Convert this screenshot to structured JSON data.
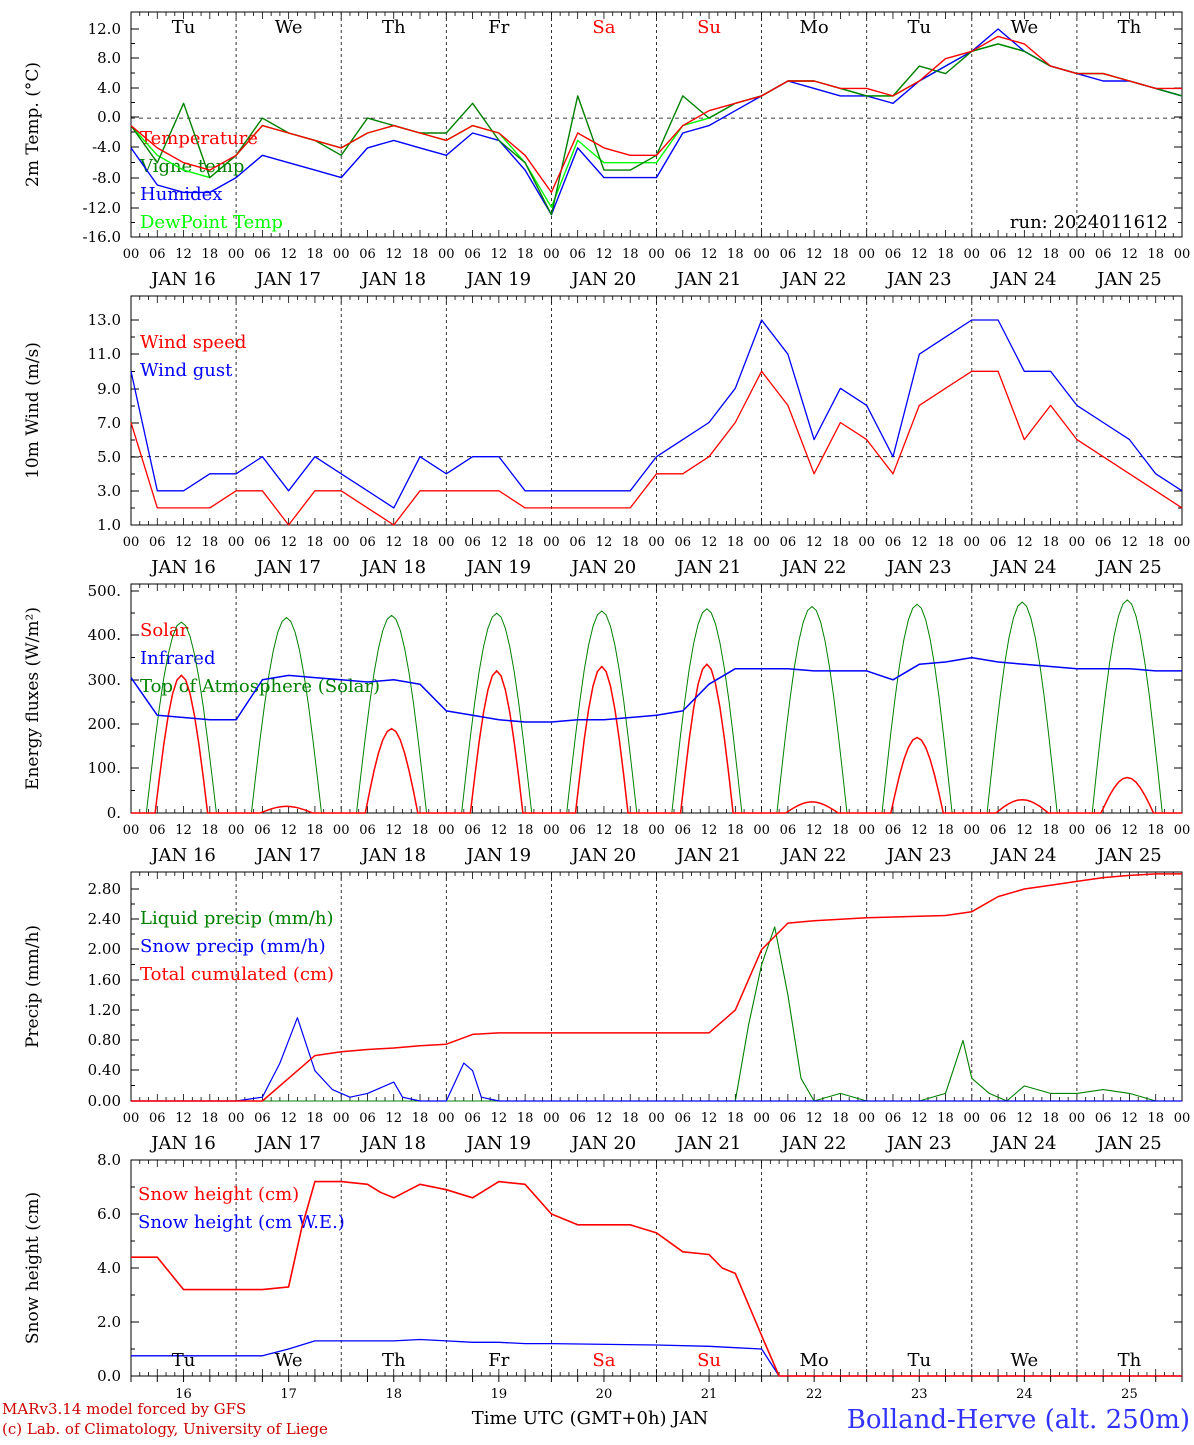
{
  "title": "Bolland-Herve (alt. 250m)",
  "xlabel": "Time UTC (GMT+0h) JAN",
  "footer": [
    "MARv3.14 model forced by GFS",
    "(c) Lab. of Climatology, University of Liege"
  ],
  "run_label": "run: 2024011612",
  "colors": {
    "red": "#ff0000",
    "blue": "#0000ff",
    "green": "#008000",
    "lightgreen": "#00ff00",
    "weekend": "#ff0000"
  },
  "hour_ticks": [
    "00",
    "06",
    "12",
    "18"
  ],
  "date_labels": [
    "JAN 16",
    "JAN 17",
    "JAN 18",
    "JAN 19",
    "JAN 20",
    "JAN 21",
    "JAN 22",
    "JAN 23",
    "JAN 24",
    "JAN 25"
  ],
  "bottom_dates": [
    "16",
    "17",
    "18",
    "19",
    "20",
    "21",
    "22",
    "23",
    "24",
    "25"
  ],
  "weekdays_top": [
    "Tu",
    "We",
    "Th",
    "Fr",
    "Sa",
    "Su",
    "Mo",
    "Tu",
    "We",
    "Th"
  ],
  "weekdays_bottom": [
    "Tu",
    "We",
    "Th",
    "Fr",
    "Sa",
    "Su",
    "Mo",
    "Tu",
    "We",
    "Th"
  ],
  "weekend_days": [
    "Sa",
    "Su"
  ],
  "chart_data": [
    {
      "type": "line",
      "ylabel": "2m Temp. (°C)",
      "ylim": [
        -16,
        14
      ],
      "yticks": [
        "-16.0",
        "-12.0",
        "-8.0",
        "-4.0",
        "0.0",
        "4.0",
        "8.0",
        "12.0"
      ],
      "ref_line": 0,
      "x_unit": "hours since JAN 16 00 UTC",
      "series": [
        {
          "name": "Temperature",
          "color": "red",
          "x": [
            0,
            6,
            12,
            18,
            24,
            30,
            36,
            42,
            48,
            54,
            60,
            66,
            72,
            78,
            84,
            90,
            96,
            102,
            108,
            114,
            120,
            126,
            132,
            138,
            144,
            150,
            156,
            162,
            168,
            174,
            180,
            186,
            192,
            198,
            204,
            210,
            216,
            222,
            228,
            234,
            240
          ],
          "values": [
            -1,
            -4,
            -6,
            -7,
            -5,
            -1,
            -2,
            -3,
            -4,
            -2,
            -1,
            -2,
            -3,
            -1,
            -2,
            -5,
            -10,
            -2,
            -4,
            -5,
            -5,
            -1,
            1,
            2,
            3,
            5,
            5,
            4,
            4,
            3,
            5,
            8,
            9,
            11,
            10,
            7,
            6,
            6,
            5,
            4,
            4
          ]
        },
        {
          "name": "Vigne temp",
          "color": "green",
          "x": [
            0,
            6,
            12,
            18,
            24,
            30,
            36,
            42,
            48,
            54,
            60,
            66,
            72,
            78,
            84,
            90,
            96,
            102,
            108,
            114,
            120,
            126,
            132,
            138,
            144,
            150,
            156,
            162,
            168,
            174,
            180,
            186,
            192,
            198,
            204,
            210,
            216,
            222,
            228,
            234,
            240
          ],
          "values": [
            -1,
            -6,
            2,
            -8,
            -5,
            0,
            -2,
            -3,
            -5,
            0,
            -1,
            -2,
            -2,
            2,
            -3,
            -6,
            -13,
            3,
            -7,
            -7,
            -5,
            3,
            0,
            2,
            3,
            5,
            5,
            4,
            3,
            3,
            7,
            6,
            9,
            10,
            9,
            7,
            6,
            6,
            5,
            4,
            3
          ]
        },
        {
          "name": "Humidex",
          "color": "blue",
          "x": [
            0,
            6,
            12,
            18,
            24,
            30,
            36,
            42,
            48,
            54,
            60,
            66,
            72,
            78,
            84,
            90,
            96,
            102,
            108,
            114,
            120,
            126,
            132,
            138,
            144,
            150,
            156,
            162,
            168,
            174,
            180,
            186,
            192,
            198,
            204,
            210,
            216,
            222,
            228,
            234,
            240
          ],
          "values": [
            -4,
            -9,
            -10,
            -10,
            -8,
            -5,
            -6,
            -7,
            -8,
            -4,
            -3,
            -4,
            -5,
            -2,
            -3,
            -7,
            -13,
            -4,
            -8,
            -8,
            -8,
            -2,
            -1,
            1,
            3,
            5,
            4,
            3,
            3,
            2,
            5,
            7,
            9,
            12,
            9,
            7,
            6,
            5,
            5,
            4,
            3
          ]
        },
        {
          "name": "DewPoint Temp",
          "color": "lightgreen",
          "x": [
            0,
            6,
            12,
            18,
            24,
            30,
            36,
            42,
            48,
            54,
            60,
            66,
            72,
            78,
            84,
            90,
            96,
            102,
            108,
            114,
            120,
            126,
            132,
            138,
            144,
            150,
            156,
            162,
            168,
            174,
            180,
            186,
            192,
            198,
            204,
            210,
            216,
            222,
            228,
            234,
            240
          ],
          "values": [
            -1,
            -5,
            -7,
            -8,
            -5,
            -1,
            -2,
            -3,
            -4,
            -2,
            -1,
            -2,
            -3,
            -1,
            -2,
            -6,
            -12,
            -3,
            -6,
            -6,
            -6,
            -1,
            0,
            2,
            3,
            5,
            5,
            4,
            3,
            3,
            5,
            7,
            9,
            10,
            9,
            7,
            6,
            6,
            5,
            4,
            3
          ]
        }
      ]
    },
    {
      "type": "line",
      "ylabel": "10m Wind (m/s)",
      "ylim": [
        1,
        14
      ],
      "yticks": [
        "1.0",
        "3.0",
        "5.0",
        "7.0",
        "9.0",
        "11.0",
        "13.0"
      ],
      "ref_line": 5,
      "series": [
        {
          "name": "Wind speed",
          "color": "red",
          "x": [
            0,
            6,
            12,
            18,
            24,
            30,
            36,
            42,
            48,
            54,
            60,
            66,
            72,
            78,
            84,
            90,
            96,
            102,
            108,
            114,
            120,
            126,
            132,
            138,
            144,
            150,
            156,
            162,
            168,
            174,
            180,
            186,
            192,
            198,
            204,
            210,
            216,
            222,
            228,
            234,
            240
          ],
          "values": [
            7,
            2,
            2,
            2,
            3,
            3,
            1,
            3,
            3,
            2,
            1,
            3,
            3,
            3,
            3,
            2,
            2,
            2,
            2,
            2,
            4,
            4,
            5,
            7,
            10,
            8,
            4,
            7,
            6,
            4,
            8,
            9,
            10,
            10,
            6,
            8,
            6,
            5,
            4,
            3,
            2
          ]
        },
        {
          "name": "Wind gust",
          "color": "blue",
          "x": [
            0,
            6,
            12,
            18,
            24,
            30,
            36,
            42,
            48,
            54,
            60,
            66,
            72,
            78,
            84,
            90,
            96,
            102,
            108,
            114,
            120,
            126,
            132,
            138,
            144,
            150,
            156,
            162,
            168,
            174,
            180,
            186,
            192,
            198,
            204,
            210,
            216,
            222,
            228,
            234,
            240
          ],
          "values": [
            10,
            3,
            3,
            4,
            4,
            5,
            3,
            5,
            4,
            3,
            2,
            5,
            4,
            5,
            5,
            3,
            3,
            3,
            3,
            3,
            5,
            6,
            7,
            9,
            13,
            11,
            6,
            9,
            8,
            5,
            11,
            12,
            13,
            13,
            10,
            10,
            8,
            7,
            6,
            4,
            3
          ]
        }
      ]
    },
    {
      "type": "line",
      "ylabel": "Energy fluxes (W/m²)",
      "ylim": [
        0,
        500
      ],
      "yticks": [
        "0.",
        "100.",
        "200.",
        "300.",
        "400.",
        "500."
      ],
      "solar_peaks": [
        310,
        15,
        190,
        320,
        330,
        335,
        25,
        170,
        30,
        80
      ],
      "toa_peaks": [
        430,
        440,
        445,
        450,
        455,
        460,
        465,
        470,
        475,
        480
      ],
      "series": [
        {
          "name": "Solar",
          "color": "red"
        },
        {
          "name": "Infrared",
          "color": "blue",
          "x": [
            0,
            6,
            12,
            18,
            24,
            30,
            36,
            42,
            48,
            54,
            60,
            66,
            72,
            78,
            84,
            90,
            96,
            102,
            108,
            114,
            120,
            126,
            132,
            138,
            144,
            150,
            156,
            162,
            168,
            174,
            180,
            186,
            192,
            198,
            204,
            210,
            216,
            222,
            228,
            234,
            240
          ],
          "values": [
            305,
            220,
            215,
            210,
            210,
            300,
            310,
            305,
            300,
            295,
            300,
            290,
            230,
            220,
            210,
            205,
            205,
            210,
            210,
            215,
            220,
            230,
            290,
            325,
            325,
            325,
            320,
            320,
            320,
            300,
            335,
            340,
            350,
            340,
            335,
            330,
            325,
            325,
            325,
            320,
            320
          ]
        },
        {
          "name": "Top of Atmosphere (Solar)",
          "color": "green"
        }
      ]
    },
    {
      "type": "line",
      "ylabel": "Precip (mm/h)",
      "ylim": [
        0,
        3.0
      ],
      "yticks": [
        "0.00",
        "0.40",
        "0.80",
        "1.20",
        "1.60",
        "2.00",
        "2.40",
        "2.80"
      ],
      "series": [
        {
          "name": "Liquid precip (mm/h)",
          "color": "green",
          "x": [
            0,
            24,
            30,
            36,
            138,
            141,
            144,
            147,
            150,
            153,
            156,
            162,
            168,
            174,
            180,
            186,
            190,
            192,
            196,
            200,
            204,
            210,
            216,
            222,
            228,
            234,
            240
          ],
          "values": [
            0,
            0,
            0,
            0,
            0,
            1.0,
            1.8,
            2.3,
            1.4,
            0.3,
            0,
            0.1,
            0,
            0,
            0,
            0.1,
            0.8,
            0.3,
            0.1,
            0,
            0.2,
            0.1,
            0.1,
            0.15,
            0.1,
            0,
            0
          ]
        },
        {
          "name": "Snow precip (mm/h)",
          "color": "blue",
          "x": [
            0,
            24,
            30,
            34,
            38,
            42,
            46,
            50,
            54,
            60,
            62,
            66,
            72,
            76,
            78,
            80,
            84,
            90,
            240
          ],
          "values": [
            0,
            0,
            0.05,
            0.5,
            1.1,
            0.4,
            0.15,
            0.05,
            0.1,
            0.25,
            0.05,
            0,
            0,
            0.5,
            0.4,
            0.05,
            0,
            0,
            0
          ]
        },
        {
          "name": "Total cumulated (cm)",
          "color": "red",
          "x": [
            0,
            30,
            36,
            42,
            48,
            54,
            60,
            66,
            72,
            78,
            84,
            90,
            96,
            102,
            108,
            114,
            120,
            126,
            132,
            138,
            144,
            150,
            156,
            162,
            168,
            174,
            180,
            186,
            192,
            198,
            204,
            210,
            216,
            222,
            228,
            234,
            240
          ],
          "values": [
            0,
            0,
            0.3,
            0.6,
            0.65,
            0.68,
            0.7,
            0.73,
            0.75,
            0.88,
            0.9,
            0.9,
            0.9,
            0.9,
            0.9,
            0.9,
            0.9,
            0.9,
            0.9,
            1.2,
            2.0,
            2.35,
            2.38,
            2.4,
            2.42,
            2.43,
            2.44,
            2.45,
            2.5,
            2.7,
            2.8,
            2.85,
            2.9,
            2.95,
            2.98,
            3.0,
            3.0
          ]
        }
      ]
    },
    {
      "type": "line",
      "ylabel": "Snow height (cm)",
      "ylim": [
        0,
        8
      ],
      "yticks": [
        "0.0",
        "2.0",
        "4.0",
        "6.0",
        "8.0"
      ],
      "series": [
        {
          "name": "Snow height (cm)",
          "color": "red",
          "x": [
            0,
            6,
            9,
            12,
            18,
            24,
            30,
            36,
            39,
            42,
            48,
            54,
            57,
            60,
            66,
            72,
            78,
            84,
            90,
            96,
            102,
            108,
            114,
            120,
            126,
            132,
            135,
            138,
            144,
            148,
            240
          ],
          "values": [
            4.4,
            4.4,
            3.8,
            3.2,
            3.2,
            3.2,
            3.2,
            3.3,
            5.5,
            7.2,
            7.2,
            7.1,
            6.8,
            6.6,
            7.1,
            6.9,
            6.6,
            7.2,
            7.1,
            6.0,
            5.6,
            5.6,
            5.6,
            5.3,
            4.6,
            4.5,
            4.0,
            3.8,
            1.5,
            0,
            0
          ]
        },
        {
          "name": "Snow height (cm W.E.)",
          "color": "blue",
          "x": [
            0,
            24,
            30,
            36,
            42,
            48,
            60,
            66,
            72,
            78,
            84,
            90,
            96,
            120,
            132,
            138,
            144,
            148,
            240
          ],
          "values": [
            0.75,
            0.75,
            0.75,
            1.0,
            1.3,
            1.3,
            1.3,
            1.35,
            1.3,
            1.25,
            1.25,
            1.2,
            1.2,
            1.15,
            1.1,
            1.05,
            1.0,
            0,
            0
          ]
        }
      ]
    }
  ]
}
